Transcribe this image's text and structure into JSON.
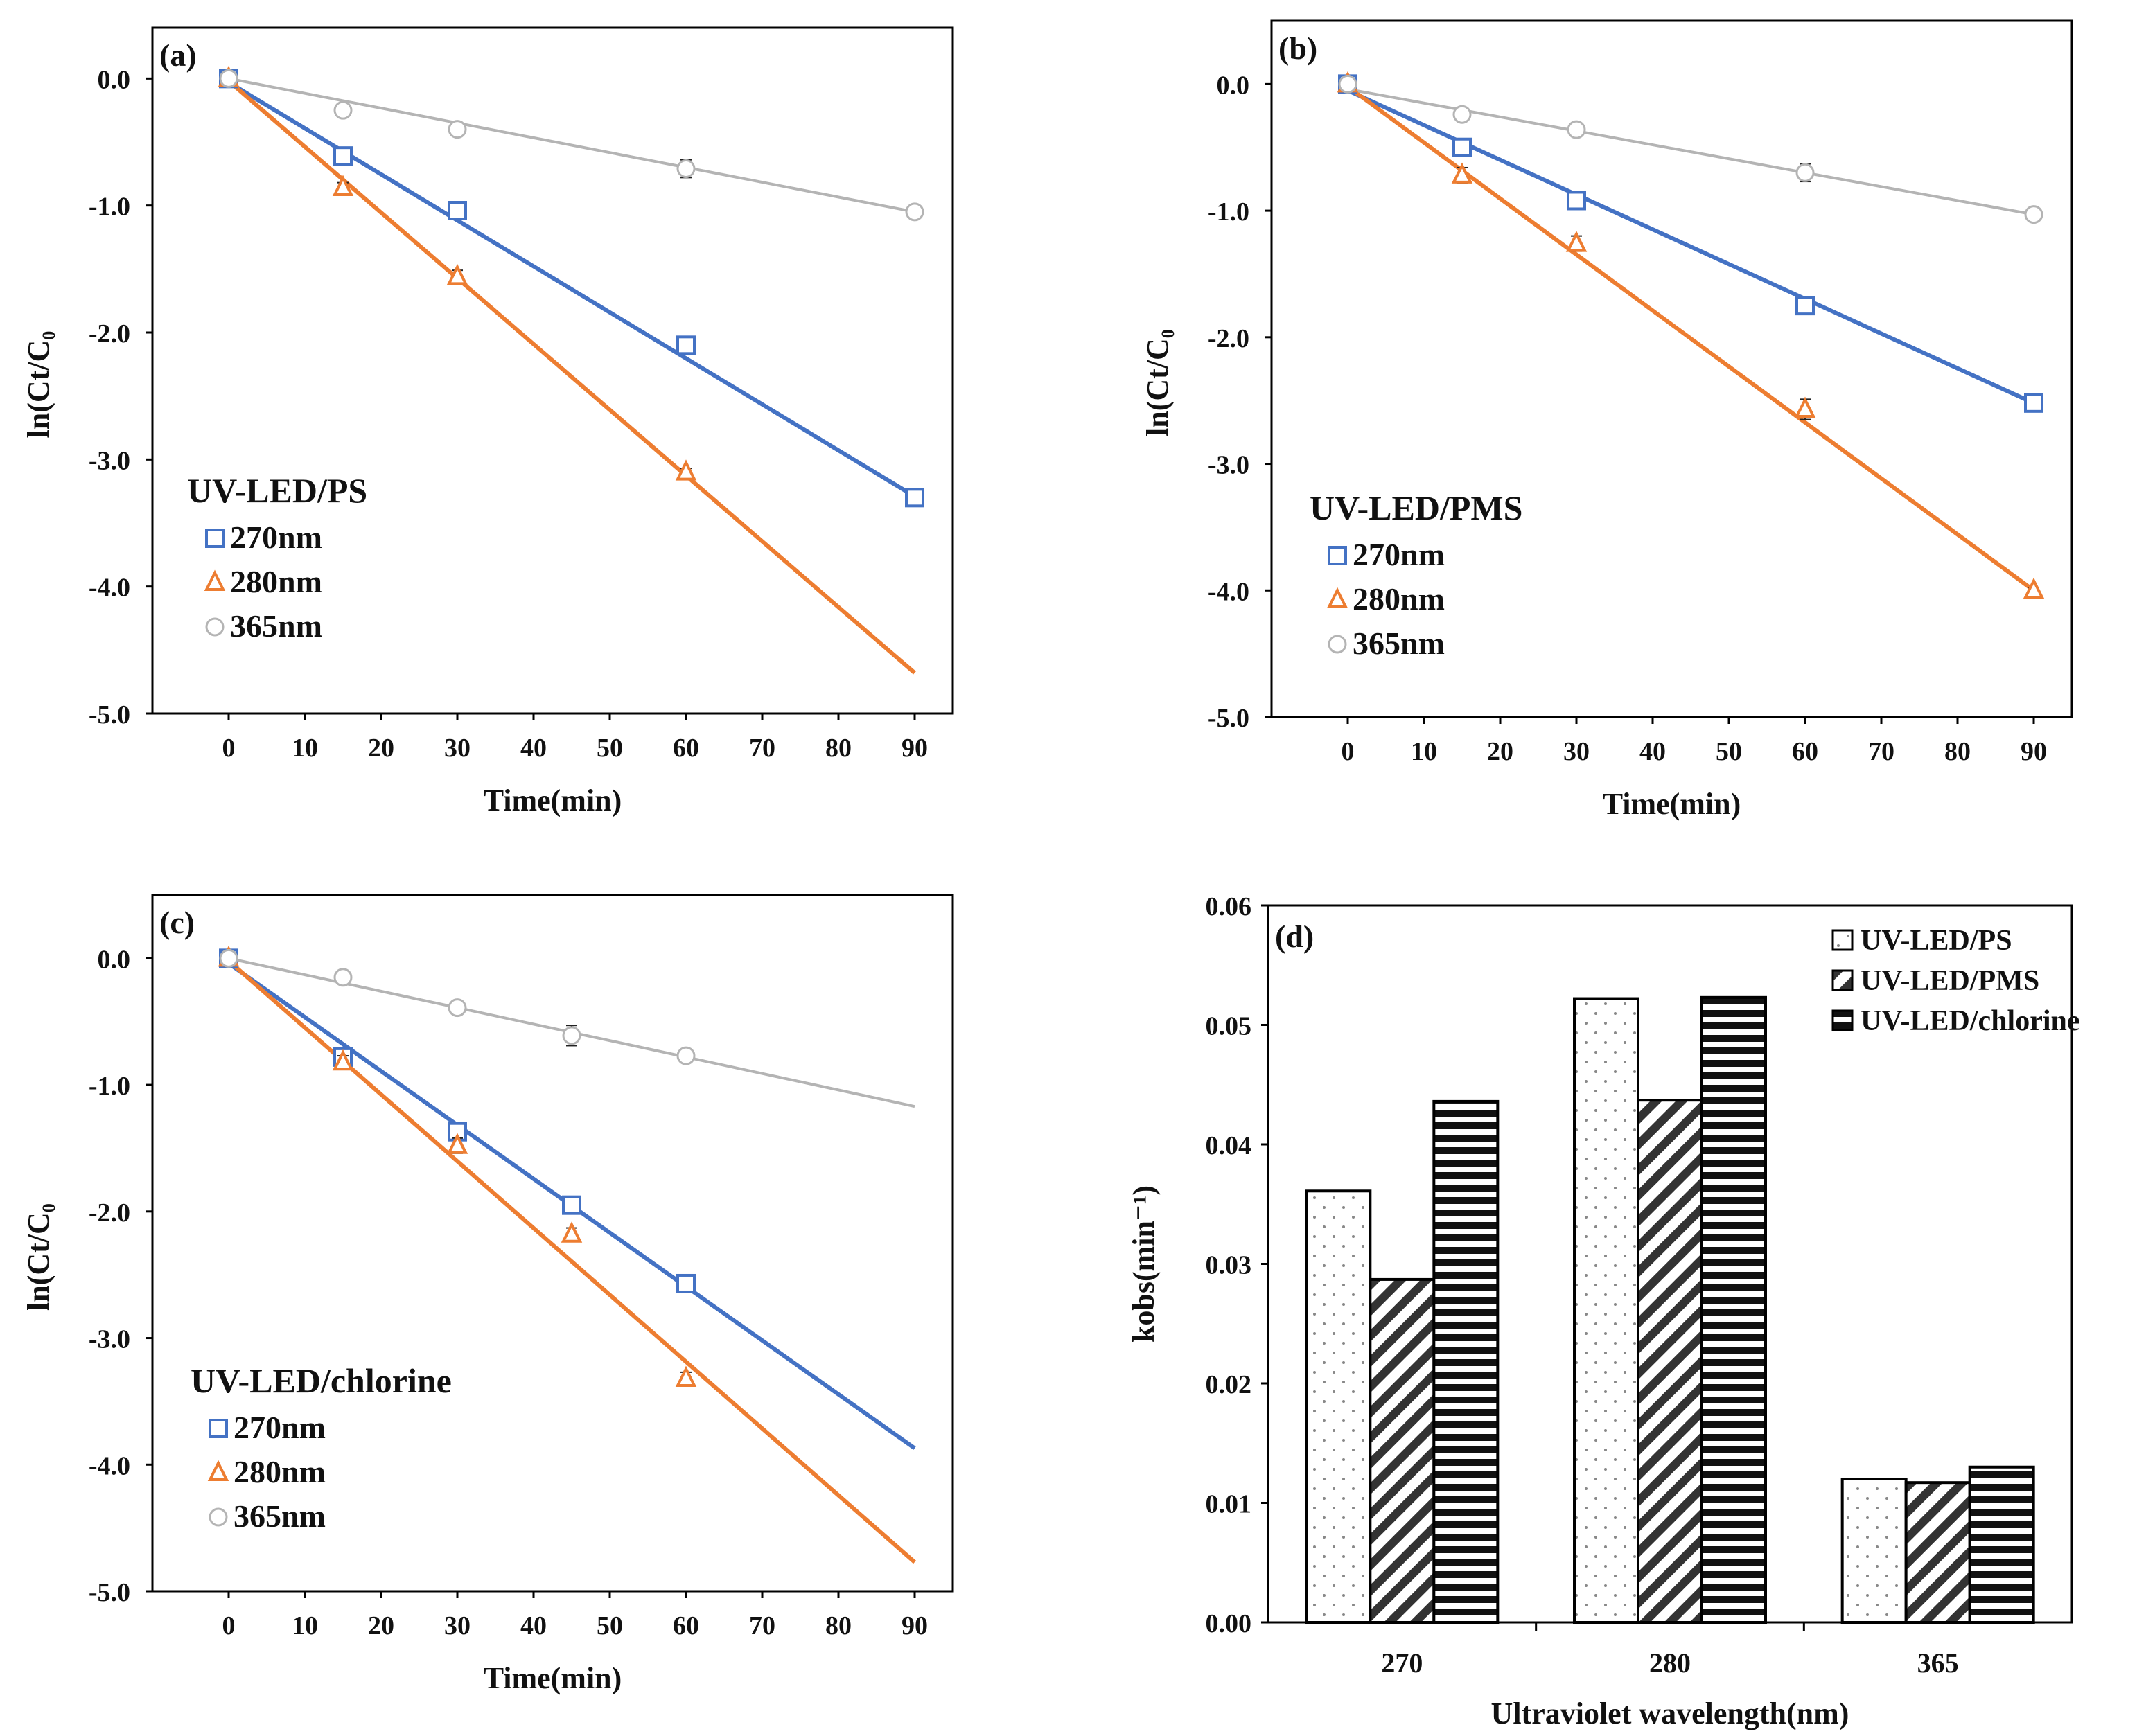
{
  "figure_colors": {
    "blue": "#4472C4",
    "orange": "#ED7D31",
    "gray": "#B4B4B4",
    "axis": "#000000"
  },
  "chart_data": [
    {
      "id": "a",
      "panel_label": "(a)",
      "type": "scatter",
      "title": "",
      "xlabel": "Time(min)",
      "ylabel": "ln(Ct/C₀",
      "xlim": [
        -10,
        95
      ],
      "ylim": [
        -5.0,
        0.4
      ],
      "xticks": [
        "0",
        "10",
        "20",
        "30",
        "40",
        "50",
        "60",
        "70",
        "80",
        "90"
      ],
      "yticks": [
        "0.0",
        "-1.0",
        "-2.0",
        "-3.0",
        "-4.0",
        "-5.0"
      ],
      "legend_title": "UV-LED/PS",
      "series": [
        {
          "name": "270nm",
          "color": "#4472C4",
          "marker": "square",
          "x": [
            0,
            15,
            30,
            60,
            90
          ],
          "y": [
            0.0,
            -0.61,
            -1.04,
            -2.1,
            -3.3
          ],
          "err": [
            0.03,
            0.05,
            0.06,
            0.06,
            0.03
          ],
          "fit": [
            [
              0,
              -0.03
            ],
            [
              90,
              -3.29
            ]
          ]
        },
        {
          "name": "280nm",
          "color": "#ED7D31",
          "marker": "triangle",
          "x": [
            0,
            15,
            30,
            60
          ],
          "y": [
            0.0,
            -0.86,
            -1.56,
            -3.1
          ],
          "err": [
            0.02,
            0.04,
            0.05,
            0.03
          ],
          "fit": [
            [
              0,
              -0.02
            ],
            [
              90,
              -4.68
            ]
          ]
        },
        {
          "name": "365nm",
          "color": "#B4B4B4",
          "marker": "circle",
          "x": [
            0,
            15,
            30,
            60,
            90
          ],
          "y": [
            0.0,
            -0.25,
            -0.4,
            -0.71,
            -1.05
          ],
          "err": [
            0.02,
            0.03,
            0.04,
            0.07,
            0.02
          ],
          "fit": [
            [
              0,
              0.0
            ],
            [
              90,
              -1.05
            ]
          ]
        }
      ]
    },
    {
      "id": "b",
      "panel_label": "(b)",
      "type": "scatter",
      "title": "",
      "xlabel": "Time(min)",
      "ylabel": "ln(Ct/C₀",
      "xlim": [
        -10,
        95
      ],
      "ylim": [
        -5.0,
        0.5
      ],
      "xticks": [
        "0",
        "10",
        "20",
        "30",
        "40",
        "50",
        "60",
        "70",
        "80",
        "90"
      ],
      "yticks": [
        "0.0",
        "-1.0",
        "-2.0",
        "-3.0",
        "-4.0",
        "-5.0"
      ],
      "legend_title": "UV-LED/PMS",
      "series": [
        {
          "name": "270nm",
          "color": "#4472C4",
          "marker": "square",
          "x": [
            0,
            15,
            30,
            60,
            90
          ],
          "y": [
            0.0,
            -0.5,
            -0.92,
            -1.75,
            -2.52
          ],
          "err": [
            0.03,
            0.05,
            0.06,
            0.06,
            0.03
          ],
          "fit": [
            [
              0,
              -0.05
            ],
            [
              90,
              -2.52
            ]
          ]
        },
        {
          "name": "280nm",
          "color": "#ED7D31",
          "marker": "triangle",
          "x": [
            0,
            15,
            30,
            60,
            90
          ],
          "y": [
            0.0,
            -0.72,
            -1.26,
            -2.57,
            -4.0
          ],
          "err": [
            0.02,
            0.06,
            0.06,
            0.08,
            0.02
          ],
          "fit": [
            [
              0,
              -0.02
            ],
            [
              90,
              -4.0
            ]
          ]
        },
        {
          "name": "365nm",
          "color": "#B4B4B4",
          "marker": "circle",
          "x": [
            0,
            15,
            30,
            60,
            90
          ],
          "y": [
            0.0,
            -0.24,
            -0.36,
            -0.7,
            -1.03
          ],
          "err": [
            0.02,
            0.04,
            0.05,
            0.07,
            0.02
          ],
          "fit": [
            [
              0,
              -0.04
            ],
            [
              90,
              -1.03
            ]
          ]
        }
      ]
    },
    {
      "id": "c",
      "panel_label": "(c)",
      "type": "scatter",
      "title": "",
      "xlabel": "Time(min)",
      "ylabel": "ln(Ct/C₀",
      "xlim": [
        -10,
        95
      ],
      "ylim": [
        -5.0,
        0.5
      ],
      "xticks": [
        "0",
        "10",
        "20",
        "30",
        "40",
        "50",
        "60",
        "70",
        "80",
        "90"
      ],
      "yticks": [
        "0.0",
        "-1.0",
        "-2.0",
        "-3.0",
        "-4.0",
        "-5.0"
      ],
      "legend_title": "UV-LED/chlorine",
      "series": [
        {
          "name": "270nm",
          "color": "#4472C4",
          "marker": "square",
          "x": [
            0,
            15,
            30,
            45,
            60
          ],
          "y": [
            0.0,
            -0.78,
            -1.37,
            -1.95,
            -2.57
          ],
          "err": [
            0.03,
            0.06,
            0.06,
            0.04,
            0.04
          ],
          "fit": [
            [
              0,
              -0.04
            ],
            [
              90,
              -3.87
            ]
          ]
        },
        {
          "name": "280nm",
          "color": "#ED7D31",
          "marker": "triangle",
          "x": [
            0,
            15,
            30,
            45,
            60
          ],
          "y": [
            0.0,
            -0.82,
            -1.48,
            -2.18,
            -3.32
          ],
          "err": [
            0.02,
            0.05,
            0.06,
            0.05,
            0.05
          ],
          "fit": [
            [
              0,
              -0.02
            ],
            [
              90,
              -4.77
            ]
          ]
        },
        {
          "name": "365nm",
          "color": "#B4B4B4",
          "marker": "circle",
          "x": [
            0,
            15,
            30,
            45,
            60
          ],
          "y": [
            0.0,
            -0.15,
            -0.39,
            -0.61,
            -0.77
          ],
          "err": [
            0.02,
            0.03,
            0.04,
            0.08,
            0.04
          ],
          "fit": [
            [
              0,
              0.0
            ],
            [
              90,
              -1.17
            ]
          ]
        }
      ]
    },
    {
      "id": "d",
      "panel_label": "(d)",
      "type": "bar",
      "title": "",
      "xlabel": "Ultraviolet wavelength(nm)",
      "ylabel": "kobs(min⁻¹)",
      "ylim": [
        0,
        0.06
      ],
      "yticks": [
        "0.00",
        "0.01",
        "0.02",
        "0.03",
        "0.04",
        "0.05",
        "0.06"
      ],
      "categories": [
        "270",
        "280",
        "365"
      ],
      "legend_position": "top-right",
      "series": [
        {
          "name": "UV-LED/PS",
          "pattern": "dots",
          "values": [
            0.0361,
            0.0522,
            0.012
          ]
        },
        {
          "name": "UV-LED/PMS",
          "pattern": "diagonal",
          "values": [
            0.0287,
            0.0437,
            0.0117
          ]
        },
        {
          "name": "UV-LED/chlorine",
          "pattern": "horizontal",
          "values": [
            0.0436,
            0.0523,
            0.013
          ]
        }
      ]
    }
  ]
}
